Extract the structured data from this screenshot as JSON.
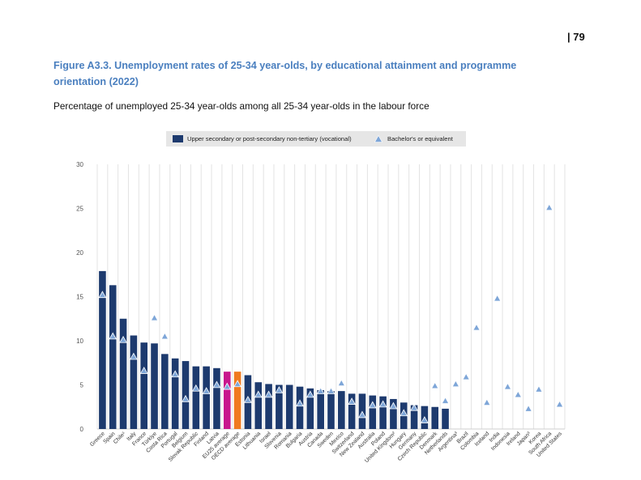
{
  "page": {
    "number": "| 79"
  },
  "chart_data": {
    "type": "bar",
    "title": "Figure A3.3. Unemployment rates of 25-34 year-olds, by educational attainment and programme orientation (2022)",
    "subtitle": "Percentage of unemployed 25-34 year-olds among all 25-34 year-olds in the labour force",
    "categories": [
      "Greece",
      "Spain",
      "Chile¹",
      "Italy",
      "France",
      "Türkiye",
      "Costa Rica",
      "Portugal",
      "Belgium",
      "Slovak Republic",
      "Finland",
      "Latvia",
      "EU25 average",
      "OECD average",
      "Estonia",
      "Lithuania",
      "Israel",
      "Slovenia",
      "Romania",
      "Bulgaria",
      "Austria",
      "Canada",
      "Sweden",
      "Mexico",
      "Switzerland",
      "New Zealand",
      "Australia",
      "Poland",
      "United Kingdom²",
      "Hungary",
      "Germany",
      "Czech Republic",
      "Denmark",
      "Netherlands",
      "Argentina³",
      "Brazil",
      "Colombia",
      "Iceland",
      "India",
      "Indonesia",
      "Ireland",
      "Japan³",
      "Korea",
      "South Africa",
      "United States"
    ],
    "series": [
      {
        "name": "Upper secondary or post-secondary non-tertiary (vocational)",
        "color": "#1d3a6e",
        "values": [
          17.9,
          16.3,
          12.5,
          10.6,
          9.8,
          9.7,
          8.5,
          8.0,
          7.7,
          7.1,
          7.1,
          6.9,
          6.5,
          6.5,
          6.1,
          5.3,
          5.1,
          5.0,
          5.0,
          4.8,
          4.6,
          4.4,
          4.3,
          4.3,
          4.0,
          4.0,
          3.8,
          3.7,
          3.4,
          3.0,
          2.7,
          2.6,
          2.5,
          2.3,
          null,
          null,
          null,
          null,
          null,
          null,
          null,
          null,
          null,
          null,
          null
        ]
      },
      {
        "name": "Bachelor's or equivalent",
        "marker": "triangle",
        "color": "#7ea6d8",
        "values": [
          15.2,
          10.5,
          10.1,
          8.2,
          6.6,
          12.6,
          10.5,
          6.2,
          3.4,
          4.6,
          4.3,
          5.0,
          4.8,
          5.1,
          3.3,
          3.9,
          3.9,
          4.4,
          null,
          2.9,
          3.9,
          4.3,
          4.3,
          5.2,
          3.1,
          1.6,
          2.7,
          2.8,
          2.6,
          1.8,
          2.4,
          1.0,
          4.9,
          3.2,
          5.1,
          5.9,
          11.5,
          3.0,
          14.8,
          4.8,
          3.9,
          2.3,
          4.5,
          25.1,
          2.8
        ]
      }
    ],
    "highlight_colors": {
      "EU25 average": "#c8178d",
      "OECD average": "#f07a1f"
    },
    "ylim": [
      0,
      30
    ],
    "yticks": [
      0,
      5,
      10,
      15,
      20,
      25,
      30
    ],
    "grid": "vertical",
    "legend": "top"
  }
}
